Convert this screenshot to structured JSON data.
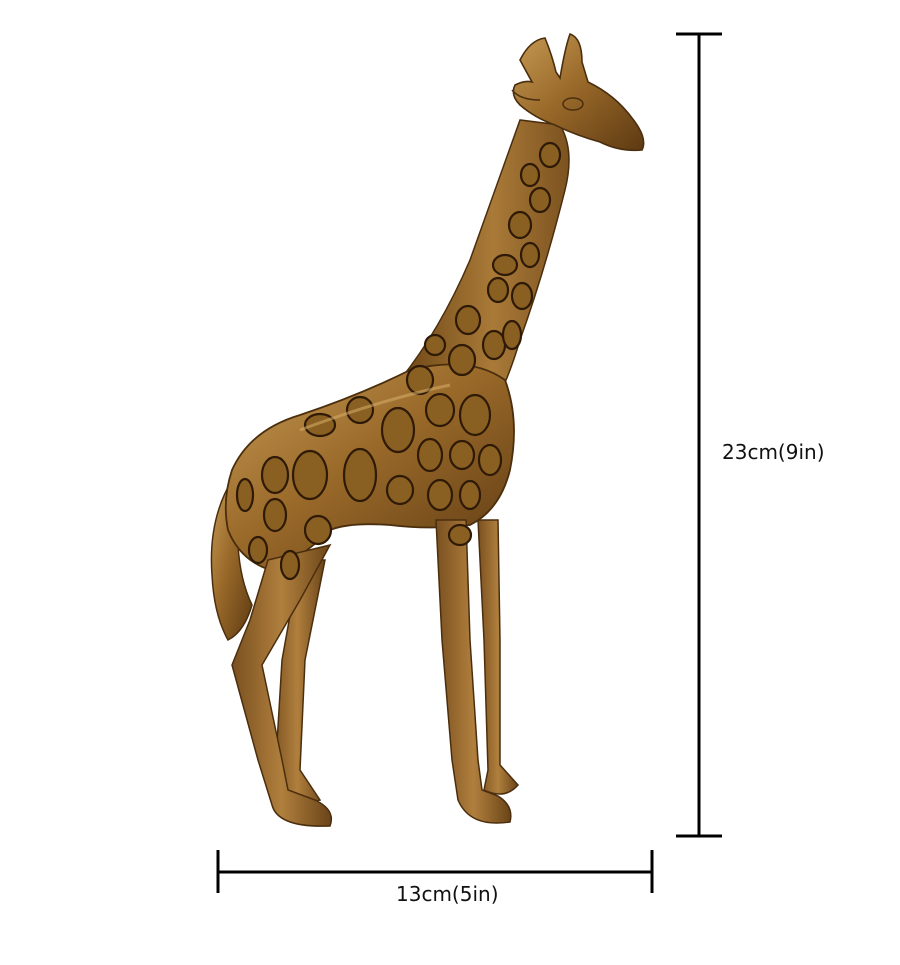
{
  "colors": {
    "background": "#ffffff",
    "bronze_light": "#b58a48",
    "bronze_mid": "#8a5f22",
    "bronze_dark": "#4a2e0e",
    "dimension_line": "#000000"
  },
  "product": {
    "subject": "giraffe-figurine",
    "material_finish": "antique-bronze"
  },
  "dimensions": {
    "height_label": "23cm(9in)",
    "width_label": "13cm(5in)"
  }
}
